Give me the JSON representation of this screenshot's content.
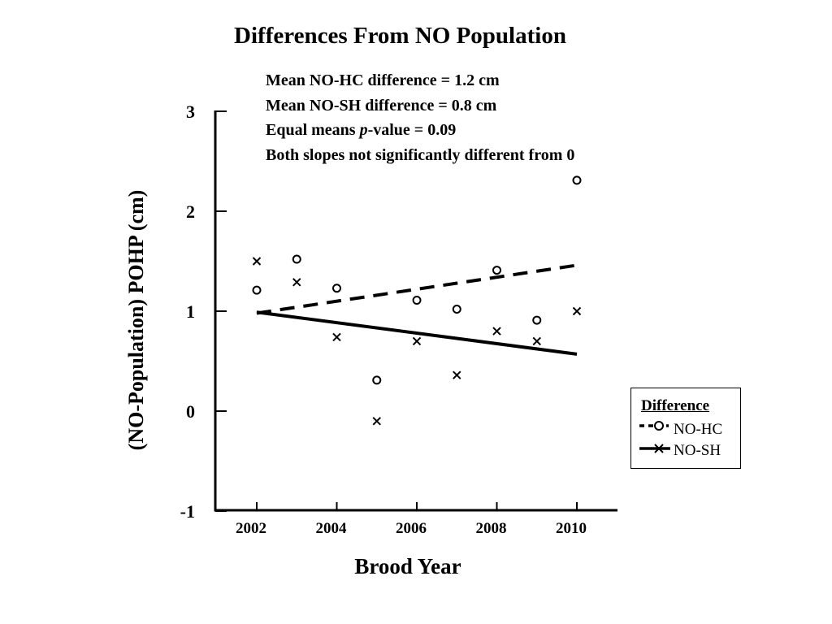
{
  "chart_data": {
    "type": "scatter",
    "title": "Differences From NO Population",
    "annotations": [
      "Mean NO-HC difference = 1.2 cm",
      "Mean NO-SH difference = 0.8 cm",
      "Both slopes not significantly different from 0"
    ],
    "pvalue_annotation": {
      "prefix": "Equal means ",
      "italic": "p",
      "suffix": "-value = 0.09"
    },
    "xlabel": "Brood Year",
    "ylabel": "(NO-Population) POHP (cm)",
    "xlim": [
      2002,
      2011
    ],
    "ylim": [
      -1,
      3
    ],
    "x_ticks": [
      2002,
      2004,
      2006,
      2008,
      2010
    ],
    "y_ticks": [
      -1,
      0,
      1,
      2,
      3
    ],
    "legend": {
      "title": "Difference",
      "position": "right"
    },
    "series": [
      {
        "name": "NO-HC",
        "marker": "circle",
        "line_style": "dashed",
        "x": [
          2002,
          2003,
          2004,
          2005,
          2006,
          2007,
          2008,
          2009,
          2010
        ],
        "y": [
          1.21,
          1.52,
          1.23,
          0.31,
          1.11,
          1.02,
          1.41,
          0.91,
          2.31
        ],
        "trend": {
          "x": [
            2002,
            2010
          ],
          "y": [
            0.98,
            1.46
          ]
        }
      },
      {
        "name": "NO-SH",
        "marker": "x",
        "line_style": "solid",
        "x": [
          2002,
          2003,
          2004,
          2005,
          2006,
          2007,
          2008,
          2009,
          2010
        ],
        "y": [
          1.5,
          1.29,
          0.74,
          -0.1,
          0.7,
          0.36,
          0.8,
          0.7,
          1.0
        ],
        "trend": {
          "x": [
            2002,
            2010
          ],
          "y": [
            0.99,
            0.57
          ]
        }
      }
    ]
  }
}
